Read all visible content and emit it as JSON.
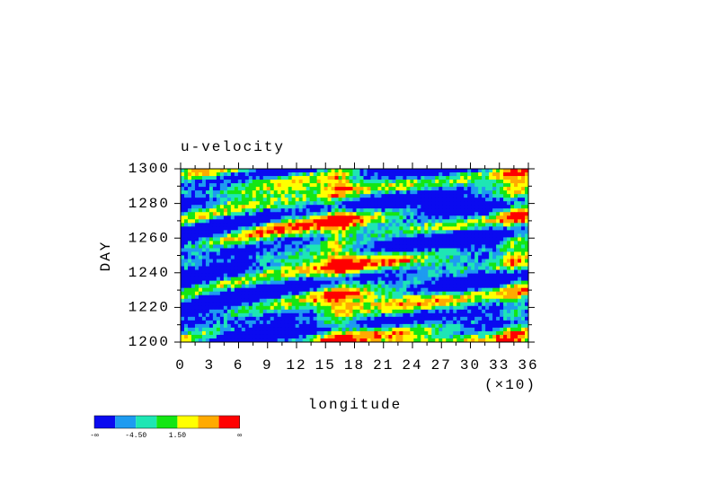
{
  "chart_data": {
    "type": "contour",
    "title": "u-velocity",
    "x_label": "longitude",
    "x_scale_note": "(×10)",
    "y_label": "DAY",
    "xlim": [
      0,
      36
    ],
    "xticks": [
      0,
      3,
      6,
      9,
      12,
      15,
      18,
      21,
      24,
      27,
      30,
      33,
      36
    ],
    "ylim": [
      1200,
      1300
    ],
    "yticks": [
      1200,
      1220,
      1240,
      1260,
      1280,
      1300
    ],
    "colorbar": {
      "colors": [
        "#0a0af0",
        "#1e9bf0",
        "#1ee6b4",
        "#14e614",
        "#ffff00",
        "#ffaa00",
        "#ff0000"
      ],
      "labels": [
        "-∞",
        null,
        "-4.50",
        null,
        "1.50",
        null,
        null,
        "∞"
      ]
    }
  }
}
